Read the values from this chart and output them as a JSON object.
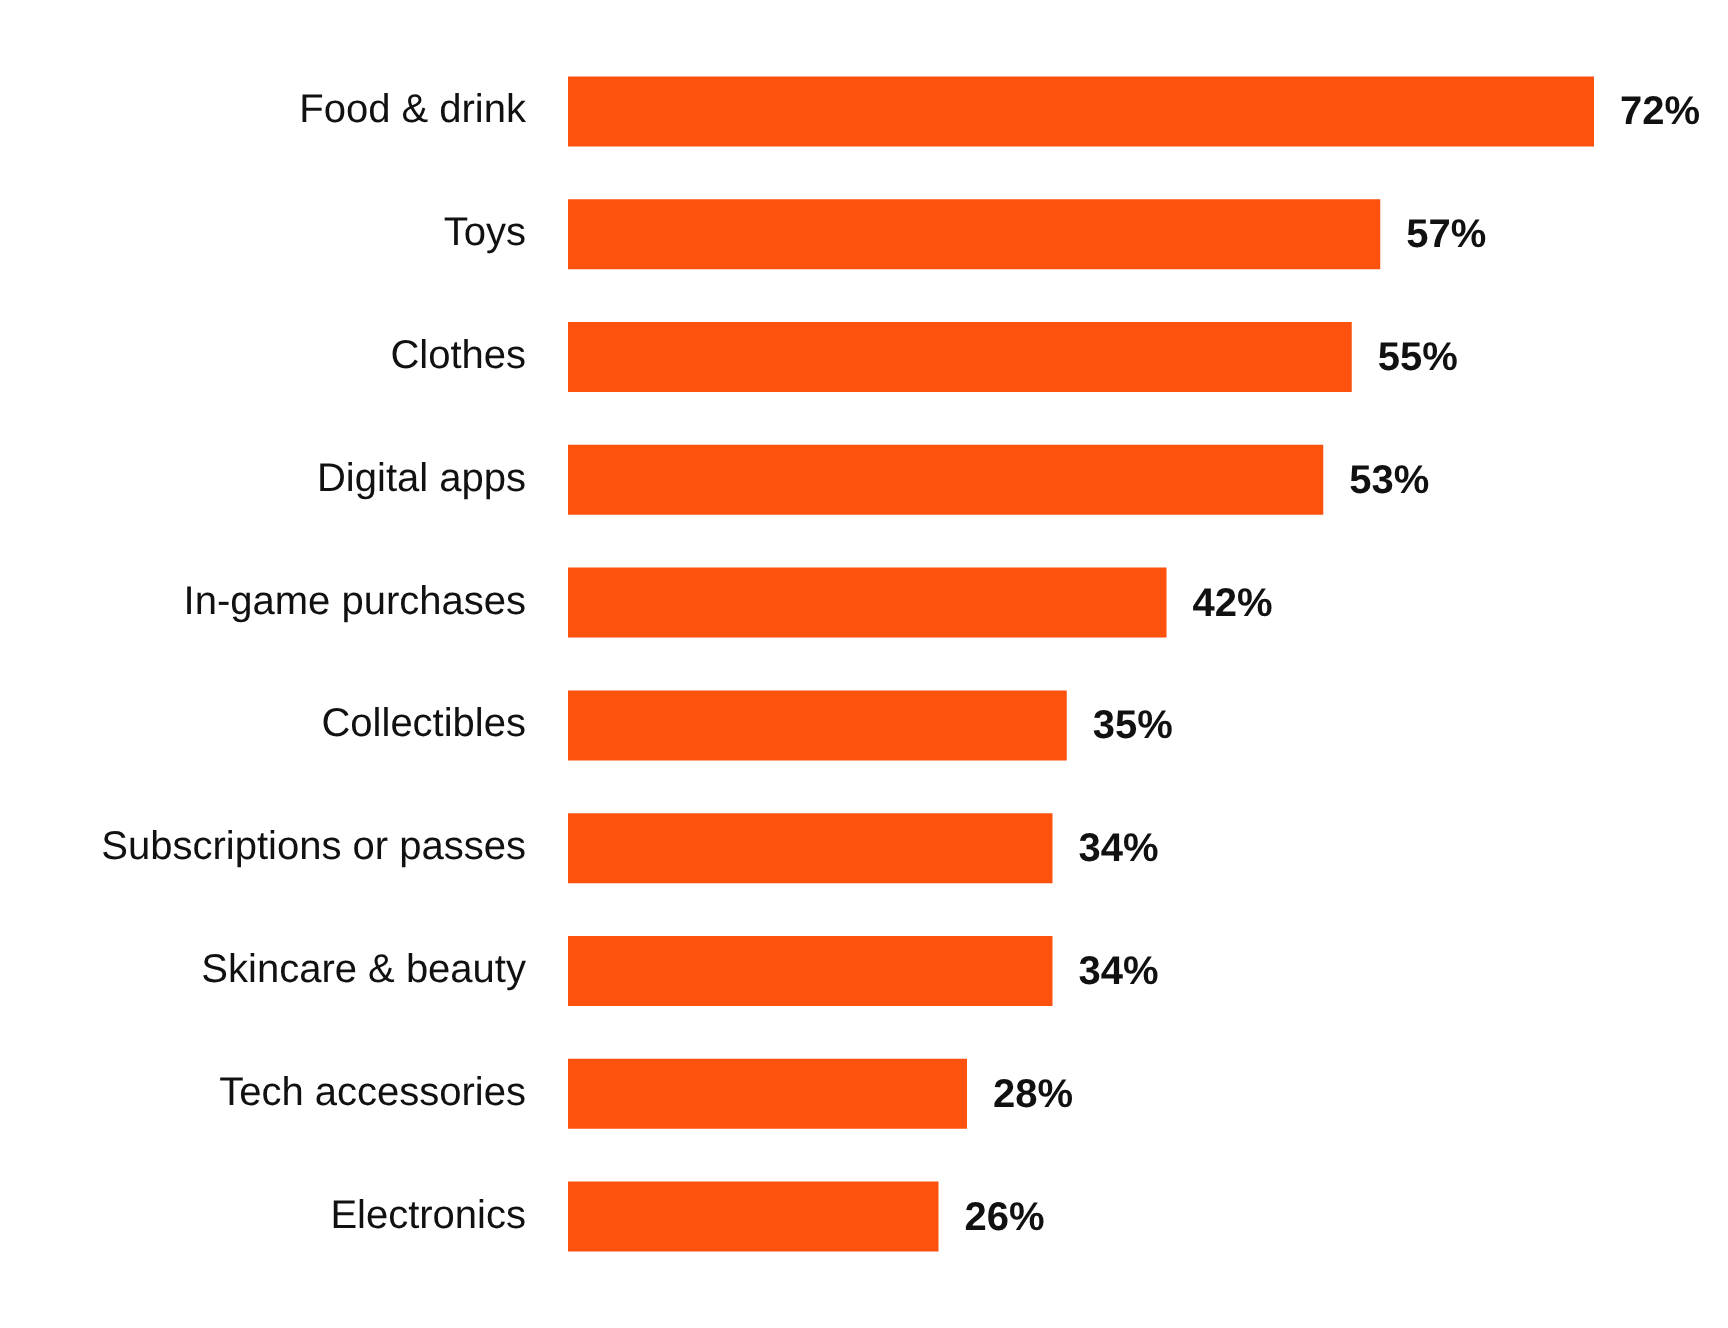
{
  "chart_data": {
    "type": "bar",
    "orientation": "horizontal",
    "categories": [
      "Food & drink",
      "Toys",
      "Clothes",
      "Digital apps",
      "In-game purchases",
      "Collectibles",
      "Subscriptions or passes",
      "Skincare & beauty",
      "Tech accessories",
      "Electronics"
    ],
    "values": [
      72,
      57,
      55,
      53,
      42,
      35,
      34,
      34,
      28,
      26
    ],
    "value_labels": [
      "72%",
      "57%",
      "55%",
      "53%",
      "42%",
      "35%",
      "34%",
      "34%",
      "28%",
      "26%"
    ],
    "color": "#fc520d",
    "tick_labels": "y",
    "legend": false
  }
}
